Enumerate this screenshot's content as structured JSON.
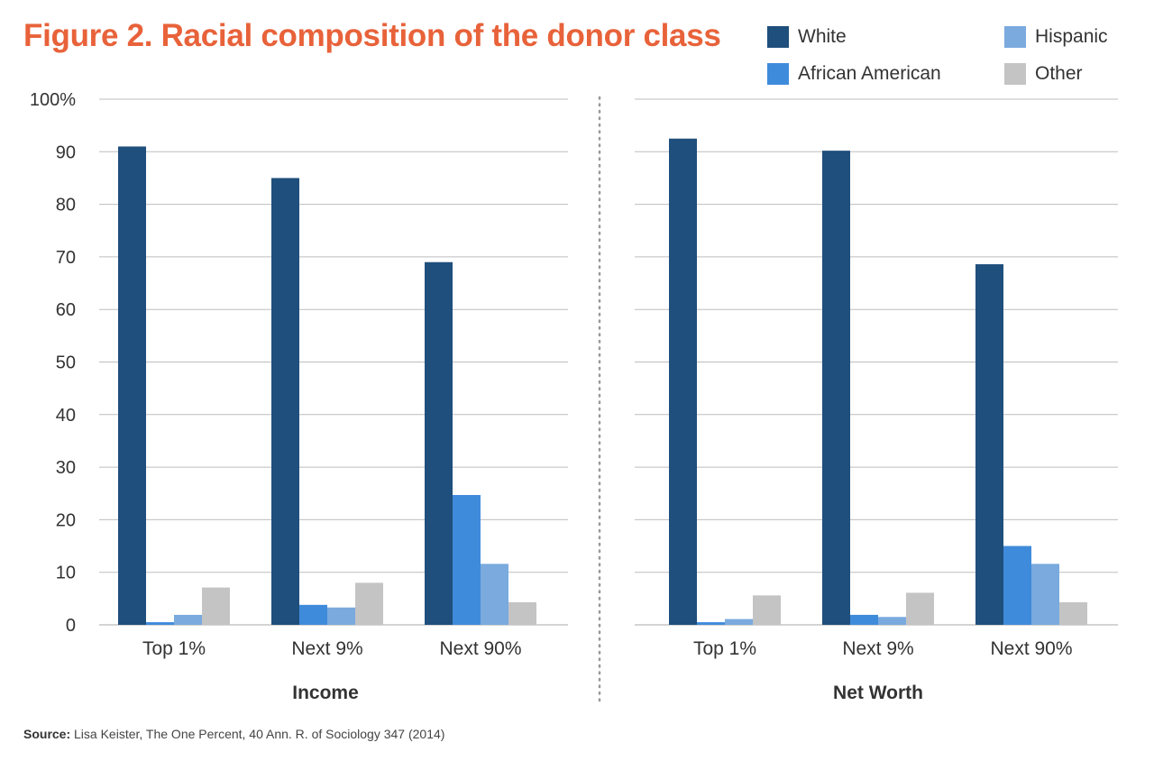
{
  "title": "Figure 2. Racial composition of the donor class",
  "legend": [
    {
      "label": "White",
      "color": "#1f4f7c"
    },
    {
      "label": "Hispanic",
      "color": "#7aaade"
    },
    {
      "label": "African American",
      "color": "#3f8bdb"
    },
    {
      "label": "Other",
      "color": "#c4c4c4"
    }
  ],
  "source": {
    "label": "Source:",
    "text": "Lisa Keister, The One Percent, 40 Ann. R. of Sociology 347 (2014)"
  },
  "chart_data": [
    {
      "type": "bar",
      "xlabel": "Income",
      "categories": [
        "Top 1%",
        "Next 9%",
        "Next 90%"
      ],
      "series": [
        {
          "name": "White",
          "color": "#1f4f7c",
          "values": [
            91,
            85,
            69
          ]
        },
        {
          "name": "African American",
          "color": "#3f8bdb",
          "values": [
            0.5,
            3.8,
            24.7
          ]
        },
        {
          "name": "Hispanic",
          "color": "#7aaade",
          "values": [
            1.9,
            3.3,
            11.6
          ]
        },
        {
          "name": "Other",
          "color": "#c4c4c4",
          "values": [
            7.1,
            8,
            4.3
          ]
        }
      ],
      "ylim": [
        0,
        100
      ],
      "yticks": [
        "0",
        "10",
        "20",
        "30",
        "40",
        "50",
        "60",
        "70",
        "80",
        "90",
        "100%"
      ],
      "grid": true
    },
    {
      "type": "bar",
      "xlabel": "Net Worth",
      "categories": [
        "Top 1%",
        "Next 9%",
        "Next 90%"
      ],
      "series": [
        {
          "name": "White",
          "color": "#1f4f7c",
          "values": [
            92.5,
            90.2,
            68.6
          ]
        },
        {
          "name": "African American",
          "color": "#3f8bdb",
          "values": [
            0.5,
            1.9,
            15
          ]
        },
        {
          "name": "Hispanic",
          "color": "#7aaade",
          "values": [
            1.1,
            1.5,
            11.6
          ]
        },
        {
          "name": "Other",
          "color": "#c4c4c4",
          "values": [
            5.6,
            6.1,
            4.3
          ]
        }
      ],
      "ylim": [
        0,
        100
      ],
      "grid": true
    }
  ]
}
